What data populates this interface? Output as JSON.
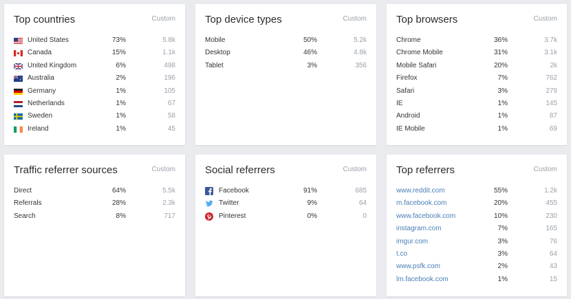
{
  "cards": {
    "countries": {
      "title": "Top countries",
      "custom": "Custom",
      "rows": [
        {
          "name": "United States",
          "pct": "73%",
          "count": "5.8k",
          "icon": "flag-us-icon"
        },
        {
          "name": "Canada",
          "pct": "15%",
          "count": "1.1k",
          "icon": "flag-ca-icon"
        },
        {
          "name": "United Kingdom",
          "pct": "6%",
          "count": "498",
          "icon": "flag-gb-icon"
        },
        {
          "name": "Australia",
          "pct": "2%",
          "count": "196",
          "icon": "flag-au-icon"
        },
        {
          "name": "Germany",
          "pct": "1%",
          "count": "105",
          "icon": "flag-de-icon"
        },
        {
          "name": "Netherlands",
          "pct": "1%",
          "count": "67",
          "icon": "flag-nl-icon"
        },
        {
          "name": "Sweden",
          "pct": "1%",
          "count": "58",
          "icon": "flag-se-icon"
        },
        {
          "name": "Ireland",
          "pct": "1%",
          "count": "45",
          "icon": "flag-ie-icon"
        }
      ]
    },
    "devices": {
      "title": "Top device types",
      "custom": "Custom",
      "rows": [
        {
          "name": "Mobile",
          "pct": "50%",
          "count": "5.2k"
        },
        {
          "name": "Desktop",
          "pct": "46%",
          "count": "4.8k"
        },
        {
          "name": "Tablet",
          "pct": "3%",
          "count": "356"
        }
      ]
    },
    "browsers": {
      "title": "Top browsers",
      "custom": "Custom",
      "rows": [
        {
          "name": "Chrome",
          "pct": "36%",
          "count": "3.7k"
        },
        {
          "name": "Chrome Mobile",
          "pct": "31%",
          "count": "3.1k"
        },
        {
          "name": "Mobile Safari",
          "pct": "20%",
          "count": "2k"
        },
        {
          "name": "Firefox",
          "pct": "7%",
          "count": "762"
        },
        {
          "name": "Safari",
          "pct": "3%",
          "count": "279"
        },
        {
          "name": "IE",
          "pct": "1%",
          "count": "145"
        },
        {
          "name": "Android",
          "pct": "1%",
          "count": "87"
        },
        {
          "name": "IE Mobile",
          "pct": "1%",
          "count": "69"
        }
      ]
    },
    "traffic": {
      "title": "Traffic referrer sources",
      "custom": "Custom",
      "rows": [
        {
          "name": "Direct",
          "pct": "64%",
          "count": "5.5k"
        },
        {
          "name": "Referrals",
          "pct": "28%",
          "count": "2.3k"
        },
        {
          "name": "Search",
          "pct": "8%",
          "count": "717"
        }
      ]
    },
    "social": {
      "title": "Social referrers",
      "custom": "Custom",
      "rows": [
        {
          "name": "Facebook",
          "pct": "91%",
          "count": "685",
          "icon": "facebook-icon"
        },
        {
          "name": "Twitter",
          "pct": "9%",
          "count": "64",
          "icon": "twitter-icon"
        },
        {
          "name": "Pinterest",
          "pct": "0%",
          "count": "0",
          "icon": "pinterest-icon"
        }
      ]
    },
    "referrers": {
      "title": "Top referrers",
      "custom": "Custom",
      "rows": [
        {
          "name": "www.reddit.com",
          "pct": "55%",
          "count": "1.2k"
        },
        {
          "name": "m.facebook.com",
          "pct": "20%",
          "count": "455"
        },
        {
          "name": "www.facebook.com",
          "pct": "10%",
          "count": "230"
        },
        {
          "name": "instagram.com",
          "pct": "7%",
          "count": "165"
        },
        {
          "name": "imgur.com",
          "pct": "3%",
          "count": "76"
        },
        {
          "name": "t.co",
          "pct": "3%",
          "count": "64"
        },
        {
          "name": "www.psfk.com",
          "pct": "2%",
          "count": "43"
        },
        {
          "name": "lm.facebook.com",
          "pct": "1%",
          "count": "15"
        }
      ]
    }
  },
  "colors": {
    "link": "#4a7fb5",
    "muted": "#9aa0a8",
    "facebook": "#3b5998",
    "twitter": "#55acee",
    "pinterest": "#cb2027"
  }
}
